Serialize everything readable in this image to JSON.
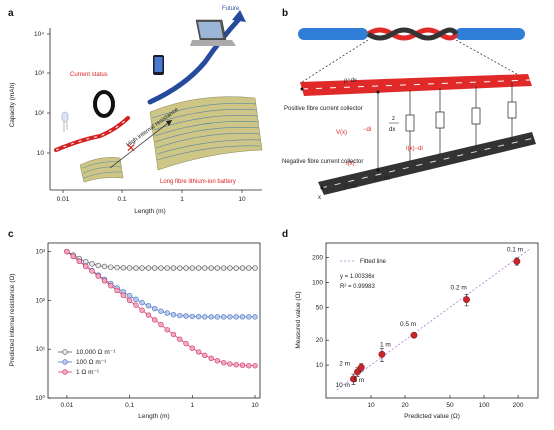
{
  "panel_a": {
    "letter": "a",
    "future_label": "Future",
    "current_status_label": "Current status",
    "high_resistance_label": "High internal resistance",
    "battery_label": "Long fibre lithium-ion battery",
    "xlabel": "Length (m)",
    "ylabel": "Capacity (mAh)",
    "x_ticks": [
      "0.01",
      "0.1",
      "1",
      "10"
    ],
    "y_ticks": [
      "10",
      "10²",
      "10³",
      "10⁴"
    ],
    "colors": {
      "current": "#d32020",
      "future": "#274b9c"
    }
  },
  "panel_b": {
    "letter": "b",
    "positive_label": "Positive fibre current collector",
    "negative_label": "Negative fibre current collector",
    "rho_top": "ρ⁺dx",
    "rho_bottom": "ρ⁻dx",
    "vx": "V(x)",
    "minus_di": "−di",
    "z_label": "z",
    "dx_label": "dx",
    "ix_label": "I(x)",
    "ix_minus_di": "I(x)−di",
    "x_label": "x",
    "x_plus_dx": "x + dx",
    "colors": {
      "positive": "#e02a2a",
      "negative": "#333333",
      "fibre": "#2f7ed8"
    }
  },
  "chart_data": [
    {
      "panel": "c",
      "type": "line",
      "letter": "c",
      "title": "",
      "xlabel": "Length (m)",
      "ylabel": "Predicted internal resistance (Ω)",
      "xscale": "log",
      "yscale": "log",
      "xlim": [
        0.005,
        12
      ],
      "ylim": [
        1,
        1500
      ],
      "x_ticks": [
        "0.01",
        "0.1",
        "1",
        "10"
      ],
      "y_ticks": [
        "10⁰",
        "10¹",
        "10²",
        "10³"
      ],
      "legend_position": "bottom-left",
      "x": [
        0.01,
        0.0126,
        0.0158,
        0.02,
        0.0251,
        0.0316,
        0.0398,
        0.0501,
        0.0631,
        0.0794,
        0.1,
        0.126,
        0.158,
        0.2,
        0.251,
        0.316,
        0.398,
        0.501,
        0.631,
        0.794,
        1,
        1.26,
        1.58,
        2,
        2.51,
        3.16,
        3.98,
        5.01,
        6.31,
        7.94,
        10
      ],
      "series": [
        {
          "name": "10,000 Ω m⁻¹",
          "color": "#555555",
          "fill": "#e8e8e8",
          "values": [
            1000,
            850,
            720,
            620,
            560,
            520,
            495,
            480,
            470,
            465,
            462,
            460,
            460,
            460,
            460,
            460,
            460,
            460,
            460,
            460,
            460,
            460,
            460,
            460,
            460,
            460,
            460,
            460,
            460,
            460,
            460
          ]
        },
        {
          "name": "100 Ω m⁻¹",
          "color": "#4a72c4",
          "fill": "#b9c9ec",
          "values": [
            1000,
            800,
            640,
            510,
            410,
            330,
            270,
            220,
            180,
            150,
            125,
            105,
            90,
            78,
            68,
            60,
            55,
            51,
            49,
            48,
            47,
            46.5,
            46,
            46,
            46,
            46,
            46,
            46,
            46,
            46,
            46
          ]
        },
        {
          "name": "1 Ω m⁻¹",
          "color": "#d4386a",
          "fill": "#f2a9c0",
          "values": [
            1000,
            800,
            630,
            500,
            400,
            315,
            252,
            200,
            160,
            127,
            100,
            80,
            63,
            50,
            40,
            32,
            25,
            20,
            16,
            13,
            10.5,
            8.8,
            7.5,
            6.5,
            5.8,
            5.3,
            5.0,
            4.8,
            4.7,
            4.6,
            4.6
          ]
        }
      ]
    },
    {
      "panel": "d",
      "type": "scatter",
      "letter": "d",
      "title": "",
      "xlabel": "Predicted value (Ω)",
      "ylabel": "Measured value (Ω)",
      "xscale": "log",
      "yscale": "log",
      "xlim": [
        4,
        300
      ],
      "ylim": [
        4,
        300
      ],
      "x_ticks": [
        "10",
        "20",
        "50",
        "100",
        "200"
      ],
      "y_ticks": [
        "10",
        "20",
        "50",
        "100",
        "200"
      ],
      "legend": "Fitted line",
      "legend_position": "top-left",
      "equation": "y = 1.00336x",
      "r_squared": "R² = 0.99983",
      "points": [
        {
          "label": "10 m",
          "x": 7.0,
          "y": 6.8,
          "err": 1.0
        },
        {
          "label": "5 m",
          "x": 7.6,
          "y": 8.3,
          "err": 1.0
        },
        {
          "label": "2 m",
          "x": 8.2,
          "y": 9.4,
          "err": 1.0
        },
        {
          "label": "1 m",
          "x": 12.5,
          "y": 13.5,
          "err": 2.5
        },
        {
          "label": "0.5 m",
          "x": 24,
          "y": 23,
          "err": 1.5
        },
        {
          "label": "0.2 m",
          "x": 70,
          "y": 62,
          "err": 10
        },
        {
          "label": "0.1 m",
          "x": 195,
          "y": 180,
          "err": 18
        }
      ],
      "fit": {
        "slope": 1.00336,
        "x_range": [
          5,
          260
        ]
      },
      "colors": {
        "point": "#c8252a",
        "fit": "#b07ad0"
      }
    }
  ]
}
